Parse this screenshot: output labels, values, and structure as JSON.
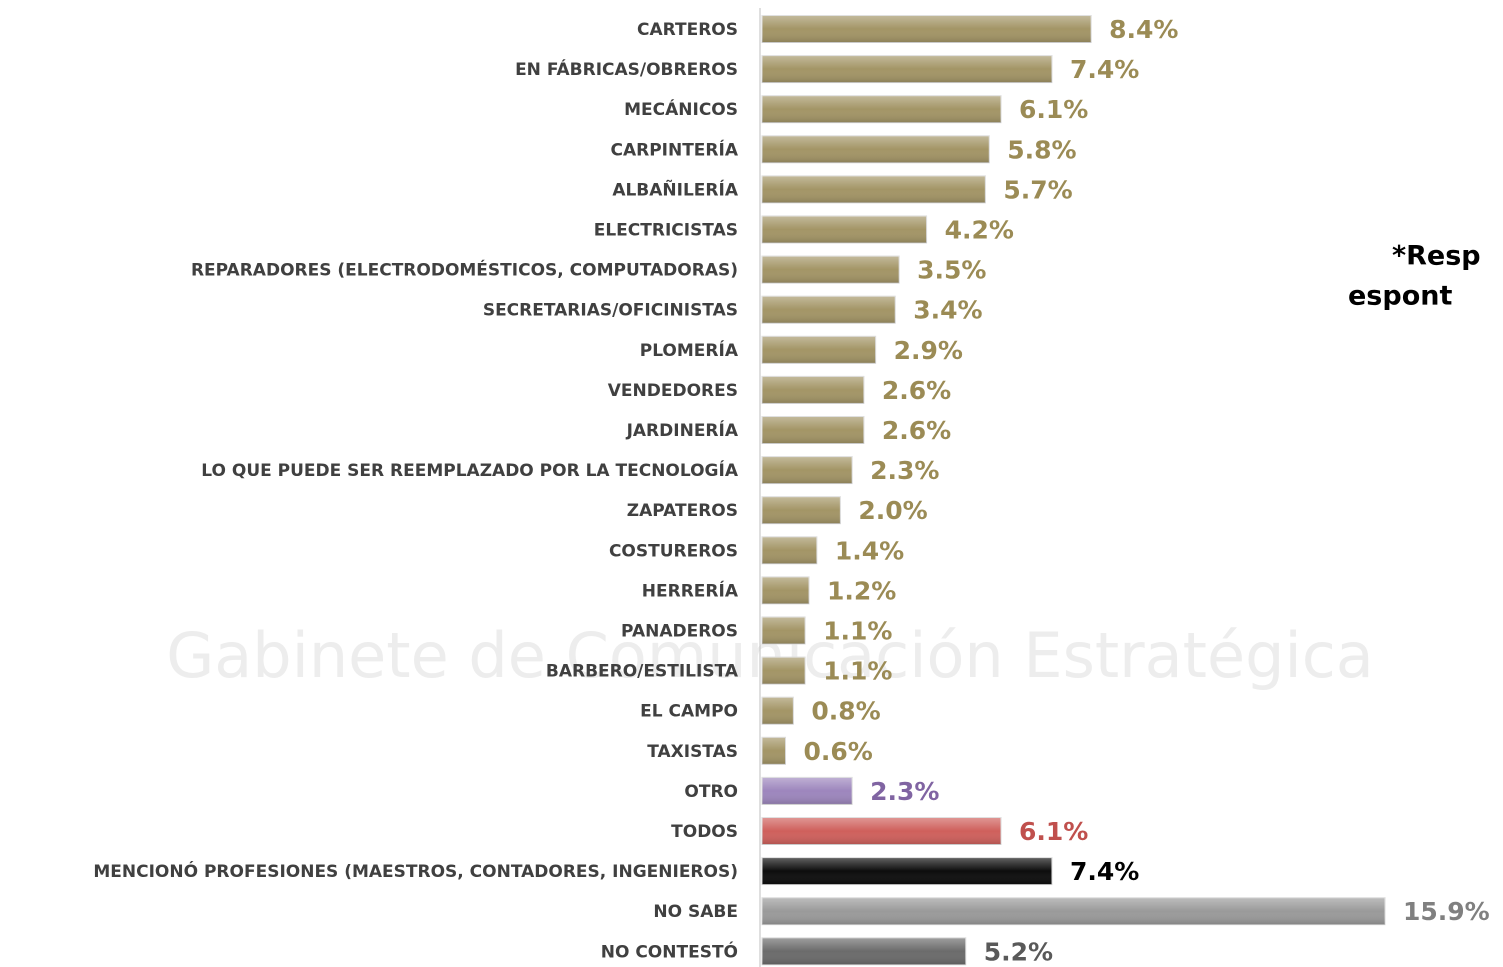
{
  "chart_data": {
    "type": "bar",
    "orientation": "horizontal",
    "watermark": "Gabinete de Comunicación Estratégica",
    "annotations": [
      "*Resp",
      "espont"
    ],
    "categories": [
      "CARTEROS",
      "EN FÁBRICAS/OBREROS",
      "MECÁNICOS",
      "CARPINTERÍA",
      "ALBAÑILERÍA",
      "ELECTRICISTAS",
      "REPARADORES (ELECTRODOMÉSTICOS, COMPUTADORAS)",
      "SECRETARIAS/OFICINISTAS",
      "PLOMERÍA",
      "VENDEDORES",
      "JARDINERÍA",
      "LO QUE PUEDE SER REEMPLAZADO POR LA TECNOLOGÍA",
      "ZAPATEROS",
      "COSTUREROS",
      "HERRERÍA",
      "PANADEROS",
      "BARBERO/ESTILISTA",
      "EL CAMPO",
      "TAXISTAS",
      "OTRO",
      "TODOS",
      "MENCIONÓ PROFESIONES (MAESTROS, CONTADORES, INGENIEROS)",
      "NO SABE",
      "NO CONTESTÓ"
    ],
    "values": [
      8.4,
      7.4,
      6.1,
      5.8,
      5.7,
      4.2,
      3.5,
      3.4,
      2.9,
      2.6,
      2.6,
      2.3,
      2.0,
      1.4,
      1.2,
      1.1,
      1.1,
      0.8,
      0.6,
      2.3,
      6.1,
      7.4,
      15.9,
      5.2
    ],
    "value_labels": [
      "8.4%",
      "7.4%",
      "6.1%",
      "5.8%",
      "5.7%",
      "4.2%",
      "3.5%",
      "3.4%",
      "2.9%",
      "2.6%",
      "2.6%",
      "2.3%",
      "2.0%",
      "1.4%",
      "1.2%",
      "1.1%",
      "1.1%",
      "0.8%",
      "0.6%",
      "2.3%",
      "6.1%",
      "7.4%",
      "15.9%",
      "5.2%"
    ],
    "colors": [
      "#a39566",
      "#a39566",
      "#a39566",
      "#a39566",
      "#a39566",
      "#a39566",
      "#a39566",
      "#a39566",
      "#a39566",
      "#a39566",
      "#a39566",
      "#a39566",
      "#a39566",
      "#a39566",
      "#a39566",
      "#a39566",
      "#a39566",
      "#a39566",
      "#a39566",
      "#9d86bd",
      "#cf605c",
      "#0d0d0d",
      "#9a9a9a",
      "#6b6b6b"
    ],
    "label_colors": [
      "#9b8b55",
      "#9b8b55",
      "#9b8b55",
      "#9b8b55",
      "#9b8b55",
      "#9b8b55",
      "#9b8b55",
      "#9b8b55",
      "#9b8b55",
      "#9b8b55",
      "#9b8b55",
      "#9b8b55",
      "#9b8b55",
      "#9b8b55",
      "#9b8b55",
      "#9b8b55",
      "#9b8b55",
      "#9b8b55",
      "#9b8b55",
      "#8064a2",
      "#c0504d",
      "#000000",
      "#808080",
      "#595959"
    ]
  }
}
